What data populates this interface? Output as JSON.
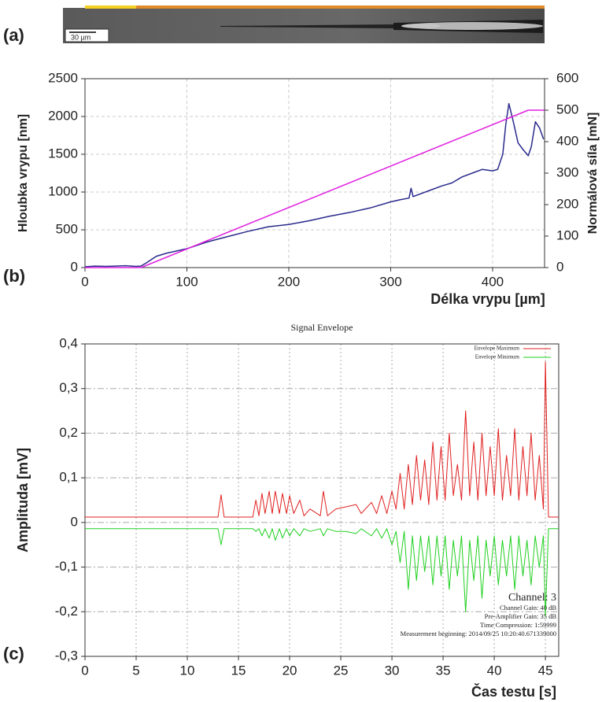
{
  "panel_labels": [
    "(a)",
    "(b)",
    "(c)"
  ],
  "micrograph": {
    "scale_bar": "30 µm"
  },
  "chart_data": [
    {
      "type": "line",
      "xlabel": "Délka vrypu [µm]",
      "ylabel": "Hloubka vrypu [nm]",
      "y2label": "Normálová síla [mN]",
      "xlim": [
        0,
        451
      ],
      "xticks": [
        0,
        100,
        200,
        300,
        400
      ],
      "ylim": [
        0,
        2500
      ],
      "yticks": [
        0,
        500,
        1000,
        1500,
        2000,
        2500
      ],
      "y2lim": [
        0,
        600
      ],
      "y2ticks": [
        0,
        100,
        200,
        300,
        400,
        500,
        600
      ],
      "y2color": "#e020e0",
      "grid": true,
      "series": [
        {
          "color": "#2a2a8c",
          "x": [
            0,
            10,
            20,
            30,
            40,
            50,
            55,
            60,
            70,
            80,
            90,
            100,
            120,
            140,
            160,
            180,
            200,
            220,
            240,
            260,
            280,
            300,
            310,
            318,
            320,
            322,
            330,
            340,
            350,
            360,
            370,
            380,
            390,
            400,
            405,
            410,
            413,
            416,
            420,
            425,
            430,
            435,
            438,
            442,
            446,
            450
          ],
          "values": [
            10,
            20,
            15,
            20,
            25,
            15,
            20,
            60,
            150,
            190,
            220,
            250,
            340,
            410,
            480,
            540,
            570,
            620,
            680,
            730,
            790,
            870,
            900,
            920,
            1050,
            940,
            980,
            1030,
            1080,
            1120,
            1200,
            1250,
            1300,
            1280,
            1300,
            1500,
            1900,
            2170,
            1950,
            1650,
            1560,
            1480,
            1600,
            1930,
            1850,
            1700
          ]
        },
        {
          "color": "#e020e0",
          "axis": "y2",
          "x": [
            0,
            55,
            435,
            451
          ],
          "values": [
            0,
            0,
            500,
            500
          ]
        }
      ]
    },
    {
      "type": "line",
      "title": "Signal Envelope",
      "xlabel": "Čas testu [s]",
      "ylabel": "Amplituda [mV]",
      "xlim": [
        0,
        46.3
      ],
      "xticks": [
        0,
        5,
        10,
        15,
        20,
        25,
        30,
        35,
        40,
        45
      ],
      "ylim": [
        -0.3,
        0.4
      ],
      "yticks": [
        {
          "value": -0.3,
          "label": "-0,3"
        },
        {
          "value": -0.2,
          "label": "-0,2"
        },
        {
          "value": -0.1,
          "label": "-0,1"
        },
        0,
        {
          "value": 0.1,
          "label": "0,1"
        },
        {
          "value": 0.2,
          "label": "0,2"
        },
        {
          "value": 0.3,
          "label": "0,3"
        },
        {
          "value": 0.4,
          "label": "0,4"
        }
      ],
      "grid": true,
      "legend": "upper right",
      "annotations": [
        "Channel: 3",
        "Channel Gain: 40 dB",
        "Pre-Amplifier Gain: 35 dB",
        "Time Compression: 1:59999",
        "Measurement beginning: 2014/09/25 10:20:40.671339000"
      ],
      "x": [
        0,
        13.0,
        13.3,
        13.6,
        16.4,
        16.7,
        17.0,
        17.3,
        17.6,
        18.0,
        18.3,
        18.6,
        19.0,
        19.3,
        19.7,
        20.0,
        20.4,
        21.0,
        21.4,
        22.0,
        23.0,
        23.3,
        23.7,
        24.5,
        25.5,
        26.5,
        27.0,
        28.0,
        28.5,
        29.0,
        29.5,
        30.0,
        30.4,
        30.8,
        31.2,
        31.6,
        32.0,
        32.4,
        32.8,
        33.2,
        33.6,
        34.0,
        34.4,
        34.8,
        35.2,
        35.6,
        36.0,
        36.4,
        36.8,
        37.2,
        37.6,
        38.0,
        38.4,
        38.8,
        39.2,
        39.6,
        40.0,
        40.4,
        40.8,
        41.2,
        41.6,
        42.0,
        42.4,
        42.8,
        43.2,
        43.6,
        44.0,
        44.4,
        44.8,
        45.0,
        45.3,
        46.3
      ],
      "series": [
        {
          "name": "Envelope Maximum",
          "color": "#e02020",
          "values": [
            0.012,
            0.012,
            0.062,
            0.012,
            0.012,
            0.05,
            0.015,
            0.065,
            0.02,
            0.07,
            0.02,
            0.07,
            0.02,
            0.065,
            0.02,
            0.06,
            0.02,
            0.05,
            0.015,
            0.03,
            0.015,
            0.07,
            0.015,
            0.03,
            0.035,
            0.04,
            0.02,
            0.045,
            0.02,
            0.06,
            0.02,
            0.07,
            0.03,
            0.11,
            0.03,
            0.13,
            0.04,
            0.15,
            0.05,
            0.14,
            0.04,
            0.18,
            0.05,
            0.17,
            0.05,
            0.2,
            0.06,
            0.13,
            0.05,
            0.25,
            0.06,
            0.18,
            0.05,
            0.2,
            0.06,
            0.17,
            0.06,
            0.21,
            0.05,
            0.15,
            0.06,
            0.21,
            0.05,
            0.17,
            0.06,
            0.2,
            0.05,
            0.15,
            0.03,
            0.36,
            0.012,
            0.012
          ]
        },
        {
          "name": "Envelope Minimum",
          "color": "#20d020",
          "values": [
            -0.014,
            -0.014,
            -0.05,
            -0.014,
            -0.014,
            -0.02,
            -0.014,
            -0.03,
            -0.014,
            -0.035,
            -0.014,
            -0.04,
            -0.014,
            -0.035,
            -0.014,
            -0.03,
            -0.014,
            -0.03,
            -0.014,
            -0.02,
            -0.014,
            -0.03,
            -0.014,
            -0.02,
            -0.02,
            -0.025,
            -0.014,
            -0.03,
            -0.014,
            -0.035,
            -0.014,
            -0.05,
            -0.02,
            -0.09,
            -0.02,
            -0.15,
            -0.03,
            -0.13,
            -0.03,
            -0.11,
            -0.03,
            -0.14,
            -0.03,
            -0.12,
            -0.03,
            -0.15,
            -0.04,
            -0.12,
            -0.03,
            -0.2,
            -0.04,
            -0.13,
            -0.03,
            -0.17,
            -0.04,
            -0.12,
            -0.03,
            -0.14,
            -0.04,
            -0.12,
            -0.03,
            -0.15,
            -0.03,
            -0.12,
            -0.04,
            -0.14,
            -0.03,
            -0.1,
            -0.03,
            -0.21,
            -0.014,
            -0.014
          ]
        }
      ]
    }
  ]
}
